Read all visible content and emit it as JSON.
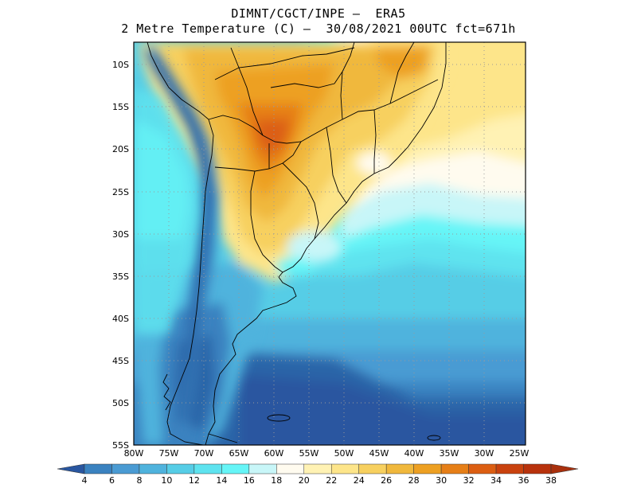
{
  "title": {
    "line1": "DIMNT/CGCT/INPE –  ERA5",
    "line2": "2 Metre Temperature (C) –  30/08/2021 00UTC fct=671h"
  },
  "lat_labels": [
    "10S",
    "15S",
    "20S",
    "25S",
    "30S",
    "35S",
    "40S",
    "45S",
    "50S",
    "55S"
  ],
  "lon_labels": [
    "80W",
    "75W",
    "70W",
    "65W",
    "60W",
    "55W",
    "50W",
    "45W",
    "40W",
    "35W",
    "30W",
    "25W"
  ],
  "colorbar": {
    "ticks": [
      "4",
      "6",
      "8",
      "10",
      "12",
      "14",
      "16",
      "18",
      "20",
      "22",
      "24",
      "26",
      "28",
      "30",
      "32",
      "34",
      "36",
      "38"
    ],
    "colors": [
      "#2b65a8",
      "#3a82c0",
      "#4a9bd3",
      "#4fb3dd",
      "#56cde6",
      "#5ee3ef",
      "#66f5f7",
      "#c8f6f8",
      "#fffbef",
      "#fff2b4",
      "#fde58a",
      "#f7d05f",
      "#f0b83c",
      "#eda022",
      "#e67f17",
      "#dc5e12",
      "#c9420e",
      "#b8320c"
    ],
    "left_arrow_color": "#2956a0",
    "right_arrow_color": "#a9300d"
  }
}
